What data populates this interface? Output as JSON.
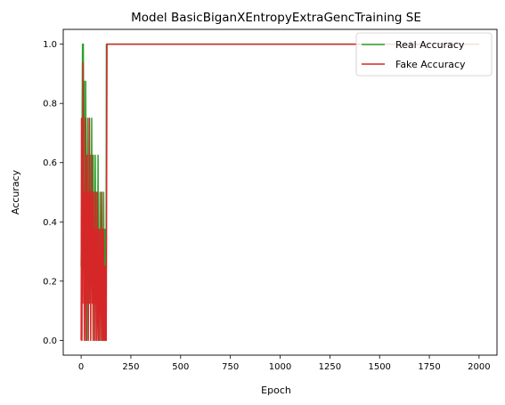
{
  "chart_data": {
    "type": "line",
    "title": "Model BasicBiganXEntropyExtraGencTraining SE",
    "xlabel": "Epoch",
    "ylabel": "Accuracy",
    "xlim": [
      -90,
      2090
    ],
    "ylim": [
      -0.05,
      1.05
    ],
    "xticks": [
      0,
      250,
      500,
      750,
      1000,
      1250,
      1500,
      1750,
      2000
    ],
    "xtick_labels": [
      "0",
      "250",
      "500",
      "750",
      "1000",
      "1250",
      "1500",
      "1750",
      "2000"
    ],
    "yticks": [
      0.0,
      0.2,
      0.4,
      0.6,
      0.8,
      1.0
    ],
    "ytick_labels": [
      "0.0",
      "0.2",
      "0.4",
      "0.6",
      "0.8",
      "1.0"
    ],
    "grid": false,
    "legend_position": "top-right",
    "series": [
      {
        "name": "Real Accuracy",
        "color": "#2ca02c",
        "x": [
          0,
          3,
          5,
          7,
          9,
          11,
          13,
          15,
          17,
          19,
          21,
          23,
          25,
          27,
          29,
          31,
          33,
          35,
          37,
          39,
          41,
          43,
          45,
          47,
          49,
          51,
          53,
          55,
          57,
          59,
          61,
          63,
          65,
          67,
          69,
          71,
          73,
          75,
          77,
          79,
          81,
          83,
          85,
          87,
          89,
          91,
          93,
          95,
          97,
          99,
          101,
          103,
          105,
          107,
          109,
          111,
          113,
          115,
          117,
          119,
          121,
          123,
          125,
          127,
          130,
          2000
        ],
        "y": [
          0.25,
          0.5,
          0.75,
          1.0,
          0.5,
          1.0,
          0.375,
          0.875,
          0.25,
          0.75,
          0.125,
          0.875,
          0.375,
          0.625,
          0.0,
          0.5,
          0.75,
          0.25,
          0.625,
          0.125,
          0.75,
          0.375,
          0.5,
          0.125,
          0.625,
          0.25,
          0.75,
          0.375,
          0.5,
          0.125,
          0.625,
          0.25,
          0.5,
          0.0,
          0.375,
          0.625,
          0.25,
          0.5,
          0.125,
          0.375,
          0.5,
          0.25,
          0.625,
          0.125,
          0.375,
          0.0,
          0.25,
          0.5,
          0.125,
          0.375,
          0.25,
          0.5,
          0.0,
          0.25,
          0.375,
          0.125,
          0.5,
          0.25,
          0.0,
          0.375,
          0.125,
          0.25,
          0.0,
          1.0,
          1.0,
          1.0
        ]
      },
      {
        "name": "Fake Accuracy",
        "color": "#d62728",
        "x": [
          0,
          2,
          4,
          6,
          8,
          10,
          12,
          14,
          16,
          18,
          20,
          22,
          24,
          26,
          28,
          30,
          32,
          34,
          36,
          38,
          40,
          42,
          44,
          46,
          48,
          50,
          52,
          54,
          56,
          58,
          60,
          62,
          64,
          66,
          68,
          70,
          72,
          74,
          76,
          78,
          80,
          82,
          84,
          86,
          88,
          90,
          92,
          94,
          96,
          98,
          100,
          102,
          104,
          106,
          108,
          110,
          112,
          114,
          116,
          118,
          120,
          122,
          124,
          126,
          128,
          130,
          2000
        ],
        "y": [
          0.0,
          0.75,
          0.0,
          0.625,
          0.125,
          0.9375,
          0.25,
          0.5,
          0.0,
          0.375,
          0.125,
          0.75,
          0.0,
          0.5,
          0.25,
          0.625,
          0.125,
          0.5,
          0.0,
          0.375,
          0.25,
          0.75,
          0.125,
          0.5,
          0.0,
          0.375,
          0.25,
          0.625,
          0.125,
          0.375,
          0.0,
          0.5,
          0.125,
          0.375,
          0.25,
          0.0,
          0.5,
          0.125,
          0.375,
          0.0,
          0.25,
          0.5,
          0.125,
          0.0,
          0.375,
          0.125,
          0.25,
          0.0,
          0.375,
          0.125,
          0.25,
          0.0,
          0.5,
          0.125,
          0.25,
          0.0,
          0.375,
          0.125,
          0.0,
          0.25,
          0.125,
          0.0,
          0.25,
          0.0,
          0.5,
          1.0,
          1.0
        ]
      }
    ]
  }
}
